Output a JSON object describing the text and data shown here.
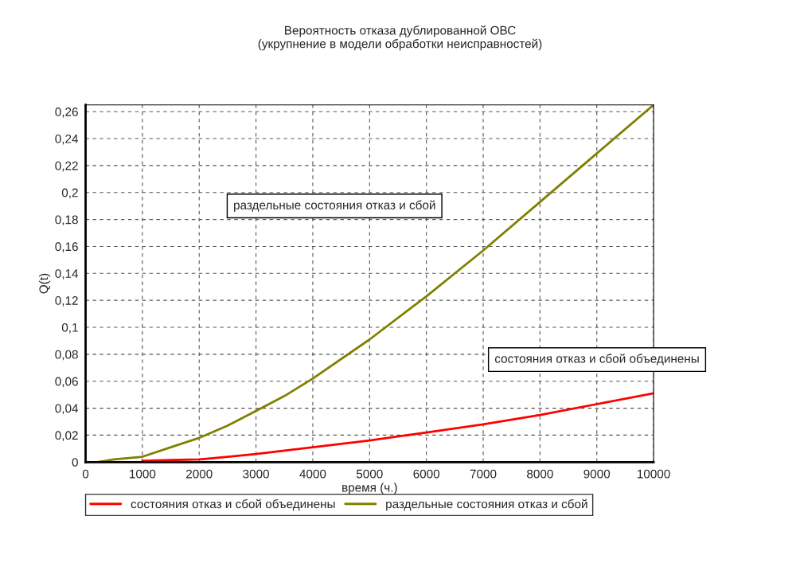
{
  "chart_data": {
    "type": "line",
    "title": "Вероятность отказа дублированной ОВС\n(укрупнение в модели обработки неисправностей)",
    "xlabel": "время (ч.)",
    "ylabel": "Q(t)",
    "series": [
      {
        "name": "состояния отказ и сбой объединены",
        "color": "#ff0000",
        "x": [
          1000,
          1500,
          2000,
          2500,
          3000,
          4000,
          5000,
          6000,
          7000,
          8000,
          9000,
          10000
        ],
        "values": [
          0.001,
          0.0015,
          0.002,
          0.004,
          0.006,
          0.011,
          0.016,
          0.022,
          0.028,
          0.035,
          0.043,
          0.051
        ]
      },
      {
        "name": "раздельные состояния отказ и сбой",
        "color": "#808000",
        "x": [
          200,
          500,
          1000,
          1500,
          2000,
          2500,
          3000,
          3500,
          4000,
          5000,
          6000,
          7000,
          8000,
          9000,
          10000
        ],
        "values": [
          0,
          0.002,
          0.004,
          0.011,
          0.018,
          0.027,
          0.038,
          0.049,
          0.062,
          0.091,
          0.123,
          0.157,
          0.193,
          0.229,
          0.265
        ]
      }
    ],
    "annotations": [
      "раздельные состояния отказ и сбой",
      "состояния отказ и сбой объединены"
    ],
    "xlim": [
      0,
      10000
    ],
    "xticks": [
      0,
      1000,
      2000,
      3000,
      4000,
      5000,
      6000,
      7000,
      8000,
      9000,
      10000
    ],
    "ylim": [
      0,
      0.265
    ],
    "yticks": [
      0,
      {
        "value": 0.02,
        "label": "0,02"
      },
      {
        "value": 0.04,
        "label": "0,04"
      },
      {
        "value": 0.06,
        "label": "0,06"
      },
      {
        "value": 0.08,
        "label": "0,08"
      },
      {
        "value": 0.1,
        "label": "0,1"
      },
      {
        "value": 0.12,
        "label": "0,12"
      },
      {
        "value": 0.14,
        "label": "0,14"
      },
      {
        "value": 0.16,
        "label": "0,16"
      },
      {
        "value": 0.18,
        "label": "0,18"
      },
      {
        "value": 0.2,
        "label": "0,2"
      },
      {
        "value": 0.22,
        "label": "0,22"
      },
      {
        "value": 0.24,
        "label": "0,24"
      },
      {
        "value": 0.26,
        "label": "0,26"
      }
    ],
    "grid": true,
    "legend": "bottom",
    "line_style": "solid",
    "marker": "none"
  }
}
